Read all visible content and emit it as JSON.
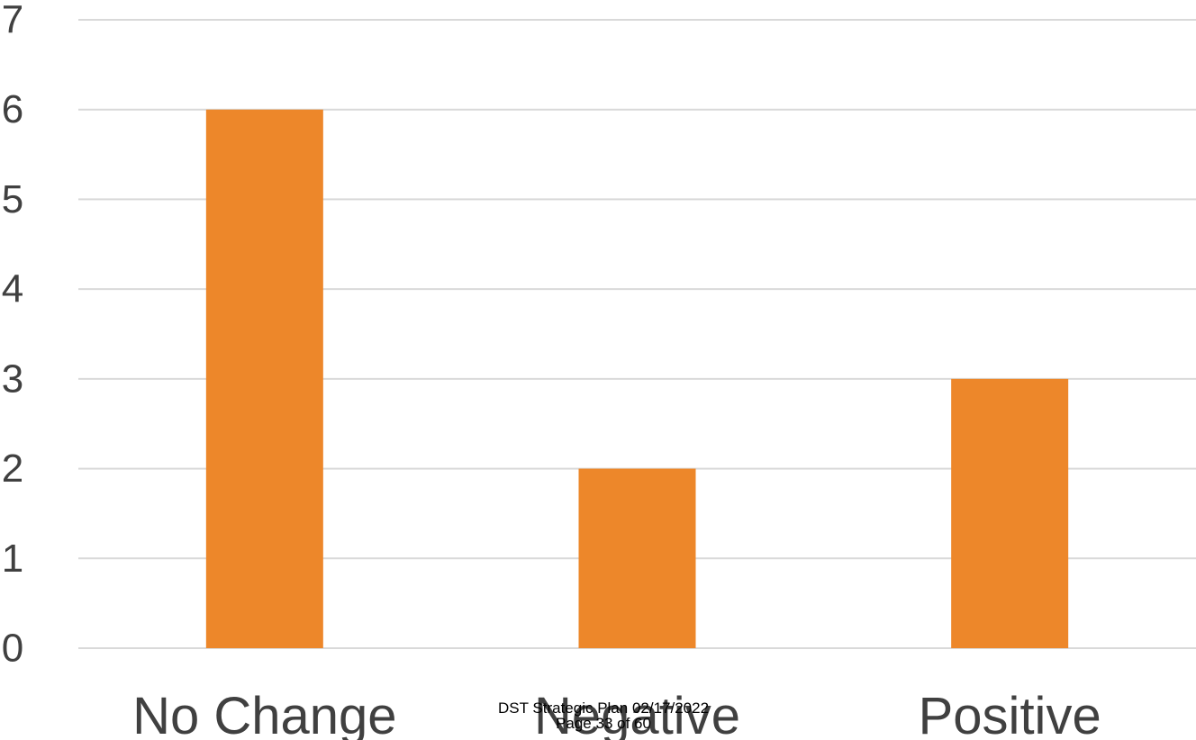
{
  "chart_data": {
    "type": "bar",
    "categories": [
      "No Change",
      "Negative",
      "Positive"
    ],
    "values": [
      6,
      2,
      3
    ],
    "yticks": [
      "0",
      "1",
      "2",
      "3",
      "4",
      "5",
      "6",
      "7"
    ],
    "ylim": [
      0,
      7
    ],
    "grid": true,
    "bar_color": "#ED872A",
    "grid_color": "#D9D9D9",
    "text_color": "#404040"
  },
  "footer": {
    "line1": "DST Strategic Plan 02/17/2022",
    "line2": "Page 33 of 60"
  }
}
